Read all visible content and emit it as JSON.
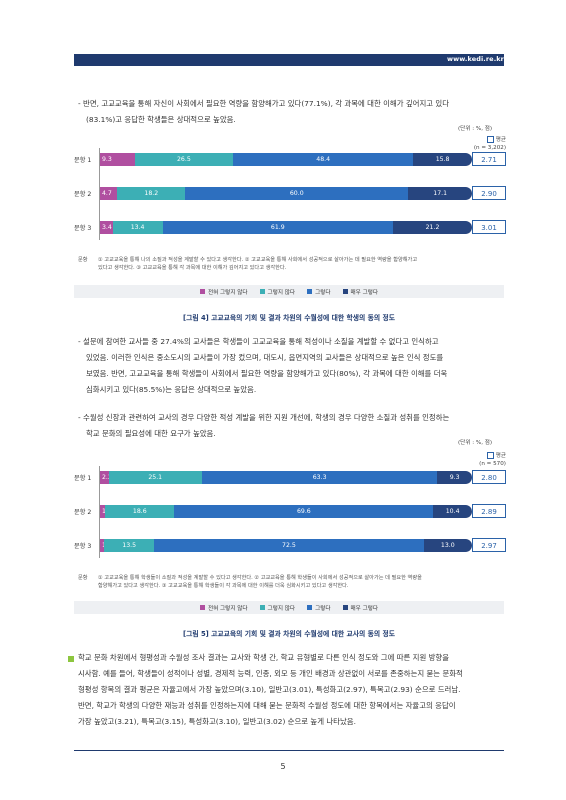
{
  "header": {
    "url": "www.kedi.re.kr"
  },
  "para1": {
    "line1": "- 반면, 고교교육을 통해 자신이 사회에서 필요한 역량을 함양해가고 있다(77.1%), 각 과목에 대한 이해가 깊어지고 있다",
    "line2": "(83.1%)고 응답한 학생들은 상대적으로 높았음."
  },
  "chart1": {
    "unit": "(단위 : %, 점)",
    "avg_label": "평균",
    "n_label": "(n = 3,202)",
    "note_label": "문항",
    "note_line1": "① 고교교육을 통해 나의 소질과 적성을 계발할 수 있다고 생각한다. ② 고교교육을 통해 사회에서 성공적으로 살아가는 데 필요한 역량을 함양해가고",
    "note_line2": "있다고 생각한다. ③ 고교교육을 통해 각 과목에 대한 이해가 깊어지고 있다고 생각한다.",
    "caption": "[그림 4] 고교교육의 기회 및 결과 차원의 수월성에 대한 학생의 동의 정도"
  },
  "para2": {
    "line1": "- 설문에 참여한 교사들 중 27.4%의 교사들은 학생들이 고교교육을 통해 적성이나 소질을 계발할 수 없다고 인식하고",
    "line2": "있었음. 이러한 인식은 중소도시의 교사들이 가장 컸으며, 대도시, 읍면지역의 교사들은 상대적으로 높은 인식 정도를",
    "line3": "보였음. 반면, 고교교육을 통해 학생들이 사회에서 필요한 역량을 함양해가고 있다(80%), 각 과목에 대한 이해를 더욱",
    "line4": "심화시키고 있다(85.5%)는 응답은 상대적으로 높았음."
  },
  "para3": {
    "line1": "- 수월성 신장과 관련하여 교사의 경우 다양한 적성 계발을 위한 지원 개선에, 학생의 경우 다양한 소질과 성취를 인정하는",
    "line2": "학교 문화의 필요성에 대한 요구가 높았음."
  },
  "chart2": {
    "unit": "(단위 : %, 점)",
    "avg_label": "평균",
    "n_label": "(n = 570)",
    "note_label": "문항",
    "note_line1": "① 고교교육을 통해 학생들이 소질과 적성을 계발할 수 있다고 생각한다. ② 고교교육을 통해 학생들이 사회에서 성공적으로 살아가는 데 필요한 역량을",
    "note_line2": "함양해가고 있다고 생각한다. ③ 고교교육을 통해 학생들이 각 과목에 대한 이해를 더욱 심화시키고 있다고 생각한다.",
    "caption": "[그림 5] 고교교육의 기회 및 결과 차원의 수월성에 대한 교사의 동의 정도"
  },
  "legend": {
    "items": [
      "전혀 그렇지 않다",
      "그렇지 않다",
      "그렇다",
      "매우 그렇다"
    ],
    "colors": [
      "#b04fa0",
      "#3cafb5",
      "#2d6fbf",
      "#27457f"
    ]
  },
  "para4": {
    "line1": "학교 문화 차원에서 형평성과 수월성 조사 결과는 교사와 학생 간, 학교 유형별로 다른 인식 정도와 그에 따른 지원 방향을",
    "line2": "시사함. 예를 들어, 학생들이 성적이나 성별, 경제적 능력, 인종, 외모 등 개인 배경과 상관없이 서로를 존중하는지 묻는 문화적",
    "line3": "형평성 항목의 결과 평균은 자율고에서 가장 높았으며(3.10), 일반고(3.01), 특성화고(2.97), 특목고(2.93) 순으로 드러남.",
    "line4": "반면, 학교가 학생의 다양한 재능과 성취를 인정하는지에 대해 묻는 문화적 수월성 정도에 대한 항목에서는 자율고의 응답이",
    "line5": "가장 높았고(3.21), 특목고(3.15), 특성화고(3.10), 일반고(3.02) 순으로 높게 나타났음."
  },
  "page_number": "5",
  "chart_data": [
    {
      "type": "bar",
      "orientation": "horizontal-stacked",
      "categories": [
        "문항 1",
        "문항 2",
        "문항 3"
      ],
      "series": [
        {
          "name": "전혀 그렇지 않다",
          "values": [
            9.3,
            4.7,
            3.4
          ]
        },
        {
          "name": "그렇지 않다",
          "values": [
            26.5,
            18.2,
            13.4
          ]
        },
        {
          "name": "그렇다",
          "values": [
            48.4,
            60.0,
            61.9
          ]
        },
        {
          "name": "매우 그렇다",
          "values": [
            15.8,
            17.1,
            21.2
          ]
        }
      ],
      "labels": [
        [
          "9.3",
          "26.5",
          "48.4",
          "15.8"
        ],
        [
          "4.7",
          "18.2",
          "60.0",
          "17.1"
        ],
        [
          "3.4",
          "13.4",
          "61.9",
          "21.2"
        ]
      ],
      "averages": [
        "2.71",
        "2.90",
        "3.01"
      ]
    },
    {
      "type": "bar",
      "orientation": "horizontal-stacked",
      "categories": [
        "문항 1",
        "문항 2",
        "문항 3"
      ],
      "series": [
        {
          "name": "전혀 그렇지 않다",
          "values": [
            2.3,
            1.4,
            1.1
          ]
        },
        {
          "name": "그렇지 않다",
          "values": [
            25.1,
            18.6,
            13.5
          ]
        },
        {
          "name": "그렇다",
          "values": [
            63.3,
            69.6,
            72.5
          ]
        },
        {
          "name": "매우 그렇다",
          "values": [
            9.3,
            10.4,
            13.0
          ]
        }
      ],
      "labels": [
        [
          "2.3",
          "25.1",
          "63.3",
          "9.3"
        ],
        [
          "1.4",
          "18.6",
          "69.6",
          "10.4"
        ],
        [
          "1.1",
          "13.5",
          "72.5",
          "13.0"
        ]
      ],
      "averages": [
        "2.80",
        "2.89",
        "2.97"
      ]
    }
  ]
}
